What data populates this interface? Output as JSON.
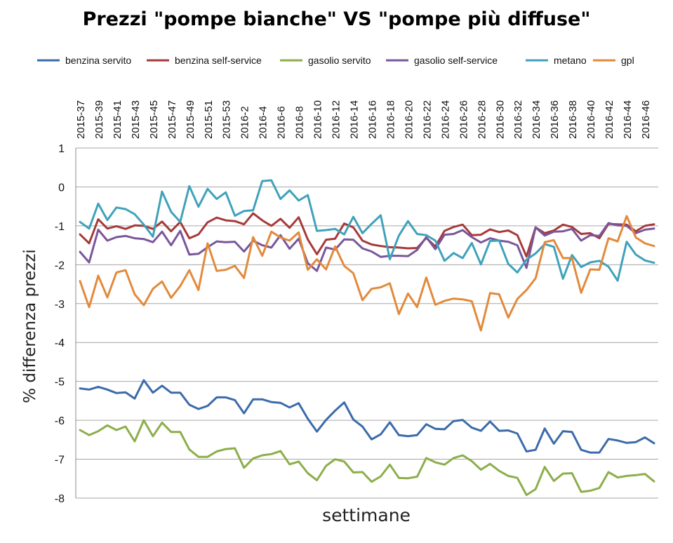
{
  "chart_data": {
    "type": "line",
    "title": "Prezzi \"pompe bianche\" VS \"pompe più diffuse\"",
    "xlabel": "settimane",
    "ylabel": "% differenza prezzi",
    "ylim": [
      -8,
      1
    ],
    "yticks": [
      1,
      0,
      -1,
      -2,
      -3,
      -4,
      -5,
      -6,
      -7,
      -8
    ],
    "grid": "horizontal",
    "legend_position": "top",
    "x_tick_labels": [
      "2015-37",
      "2015-39",
      "2015-41",
      "2015-43",
      "2015-45",
      "2015-47",
      "2015-49",
      "2015-51",
      "2015-53",
      "2016-2",
      "2016-4",
      "2016-6",
      "2016-8",
      "2016-10",
      "2016-12",
      "2016-14",
      "2016-16",
      "2016-18",
      "2016-20",
      "2016-22",
      "2016-24",
      "2016-26",
      "2016-28",
      "2016-30",
      "2016-32",
      "2016-34",
      "2016-36",
      "2016-38",
      "2016-40",
      "2016-42",
      "2016-44",
      "2016-46"
    ],
    "x": [
      "2015-37",
      "2015-38",
      "2015-39",
      "2015-40",
      "2015-41",
      "2015-42",
      "2015-43",
      "2015-44",
      "2015-45",
      "2015-46",
      "2015-47",
      "2015-48",
      "2015-49",
      "2015-50",
      "2015-51",
      "2015-52",
      "2015-53",
      "2016-1",
      "2016-2",
      "2016-3",
      "2016-4",
      "2016-5",
      "2016-6",
      "2016-7",
      "2016-8",
      "2016-9",
      "2016-10",
      "2016-11",
      "2016-12",
      "2016-13",
      "2016-14",
      "2016-15",
      "2016-16",
      "2016-17",
      "2016-18",
      "2016-19",
      "2016-20",
      "2016-21",
      "2016-22",
      "2016-23",
      "2016-24",
      "2016-25",
      "2016-26",
      "2016-27",
      "2016-28",
      "2016-29",
      "2016-30",
      "2016-31",
      "2016-32",
      "2016-33",
      "2016-34",
      "2016-35",
      "2016-36",
      "2016-37",
      "2016-38",
      "2016-39",
      "2016-40",
      "2016-41",
      "2016-42",
      "2016-43",
      "2016-44",
      "2016-45",
      "2016-46",
      "2016-47"
    ],
    "series": [
      {
        "name": "benzina servito",
        "color": "#3B6BAA",
        "values": [
          -5.18,
          -5.21,
          -5.14,
          -5.21,
          -5.3,
          -5.28,
          -5.44,
          -4.97,
          -5.29,
          -5.11,
          -5.29,
          -5.29,
          -5.6,
          -5.71,
          -5.63,
          -5.41,
          -5.41,
          -5.48,
          -5.82,
          -5.46,
          -5.46,
          -5.53,
          -5.55,
          -5.67,
          -5.56,
          -5.96,
          -6.29,
          -5.99,
          -5.75,
          -5.54,
          -5.98,
          -6.16,
          -6.49,
          -6.36,
          -6.05,
          -6.38,
          -6.41,
          -6.38,
          -6.1,
          -6.22,
          -6.23,
          -6.02,
          -5.99,
          -6.19,
          -6.27,
          -6.03,
          -6.27,
          -6.26,
          -6.34,
          -6.8,
          -6.76,
          -6.21,
          -6.6,
          -6.28,
          -6.3,
          -6.76,
          -6.83,
          -6.83,
          -6.48,
          -6.52,
          -6.58,
          -6.56,
          -6.44,
          -6.59
        ]
      },
      {
        "name": "benzina self-service",
        "color": "#A63A3A",
        "values": [
          -1.22,
          -1.45,
          -0.83,
          -1.07,
          -1.01,
          -1.08,
          -0.99,
          -1.0,
          -1.08,
          -0.89,
          -1.14,
          -0.9,
          -1.32,
          -1.22,
          -0.91,
          -0.79,
          -0.86,
          -0.88,
          -0.96,
          -0.68,
          -0.86,
          -1.0,
          -0.82,
          -1.05,
          -0.78,
          -1.35,
          -1.73,
          -1.36,
          -1.33,
          -0.94,
          -1.04,
          -1.38,
          -1.48,
          -1.52,
          -1.55,
          -1.56,
          -1.58,
          -1.57,
          -1.31,
          -1.53,
          -1.13,
          -1.03,
          -0.97,
          -1.24,
          -1.23,
          -1.09,
          -1.16,
          -1.12,
          -1.24,
          -1.79,
          -1.04,
          -1.19,
          -1.12,
          -0.97,
          -1.03,
          -1.21,
          -1.19,
          -1.32,
          -0.95,
          -0.96,
          -0.97,
          -1.14,
          -1.0,
          -0.96
        ]
      },
      {
        "name": "gasolio servito",
        "color": "#8DAE4B",
        "values": [
          -6.25,
          -6.38,
          -6.28,
          -6.13,
          -6.25,
          -6.16,
          -6.54,
          -6.0,
          -6.41,
          -6.06,
          -6.3,
          -6.3,
          -6.75,
          -6.94,
          -6.94,
          -6.8,
          -6.74,
          -6.72,
          -7.22,
          -6.98,
          -6.9,
          -6.87,
          -6.79,
          -7.13,
          -7.06,
          -7.36,
          -7.54,
          -7.17,
          -7.0,
          -7.06,
          -7.34,
          -7.33,
          -7.58,
          -7.44,
          -7.14,
          -7.48,
          -7.49,
          -7.45,
          -6.97,
          -7.08,
          -7.14,
          -6.97,
          -6.9,
          -7.05,
          -7.27,
          -7.12,
          -7.3,
          -7.43,
          -7.48,
          -7.92,
          -7.77,
          -7.2,
          -7.56,
          -7.37,
          -7.36,
          -7.84,
          -7.81,
          -7.74,
          -7.33,
          -7.47,
          -7.43,
          -7.41,
          -7.38,
          -7.57
        ]
      },
      {
        "name": "gasolio self-service",
        "color": "#7A569B",
        "values": [
          -1.67,
          -1.94,
          -1.1,
          -1.38,
          -1.29,
          -1.26,
          -1.32,
          -1.34,
          -1.42,
          -1.15,
          -1.5,
          -1.13,
          -1.74,
          -1.72,
          -1.55,
          -1.4,
          -1.42,
          -1.41,
          -1.66,
          -1.38,
          -1.5,
          -1.56,
          -1.24,
          -1.59,
          -1.33,
          -1.96,
          -2.16,
          -1.56,
          -1.61,
          -1.35,
          -1.36,
          -1.58,
          -1.66,
          -1.8,
          -1.77,
          -1.77,
          -1.78,
          -1.62,
          -1.29,
          -1.6,
          -1.23,
          -1.21,
          -1.11,
          -1.29,
          -1.43,
          -1.32,
          -1.38,
          -1.41,
          -1.5,
          -2.08,
          -1.04,
          -1.25,
          -1.15,
          -1.14,
          -1.08,
          -1.38,
          -1.24,
          -1.26,
          -0.93,
          -0.99,
          -1.0,
          -1.19,
          -1.1,
          -1.07
        ]
      },
      {
        "name": "metano",
        "color": "#3FA2BA",
        "values": [
          -0.9,
          -1.07,
          -0.43,
          -0.85,
          -0.53,
          -0.57,
          -0.7,
          -0.97,
          -1.28,
          -0.12,
          -0.64,
          -0.9,
          0.02,
          -0.51,
          -0.05,
          -0.31,
          -0.14,
          -0.74,
          -0.62,
          -0.6,
          0.15,
          0.17,
          -0.31,
          -0.09,
          -0.35,
          -0.21,
          -1.13,
          -1.11,
          -1.08,
          -1.22,
          -0.77,
          -1.19,
          -0.95,
          -0.73,
          -1.86,
          -1.25,
          -0.88,
          -1.21,
          -1.24,
          -1.38,
          -1.9,
          -1.7,
          -1.83,
          -1.44,
          -1.99,
          -1.39,
          -1.38,
          -1.98,
          -2.2,
          -1.87,
          -1.71,
          -1.47,
          -1.54,
          -2.36,
          -1.75,
          -2.06,
          -1.94,
          -1.9,
          -2.05,
          -2.41,
          -1.41,
          -1.74,
          -1.89,
          -1.95
        ]
      },
      {
        "name": "gpl",
        "color": "#E28A3B",
        "values": [
          -2.42,
          -3.09,
          -2.28,
          -2.84,
          -2.2,
          -2.14,
          -2.76,
          -3.04,
          -2.62,
          -2.43,
          -2.85,
          -2.55,
          -2.14,
          -2.65,
          -1.45,
          -2.16,
          -2.13,
          -2.03,
          -2.34,
          -1.29,
          -1.77,
          -1.15,
          -1.3,
          -1.38,
          -1.17,
          -2.13,
          -1.86,
          -2.12,
          -1.53,
          -2.03,
          -2.22,
          -2.91,
          -2.62,
          -2.58,
          -2.48,
          -3.27,
          -2.74,
          -3.09,
          -2.33,
          -3.03,
          -2.93,
          -2.87,
          -2.89,
          -2.94,
          -3.69,
          -2.73,
          -2.76,
          -3.36,
          -2.88,
          -2.65,
          -2.35,
          -1.42,
          -1.37,
          -1.83,
          -1.83,
          -2.72,
          -2.12,
          -2.13,
          -1.32,
          -1.4,
          -0.75,
          -1.3,
          -1.45,
          -1.52
        ]
      }
    ]
  }
}
